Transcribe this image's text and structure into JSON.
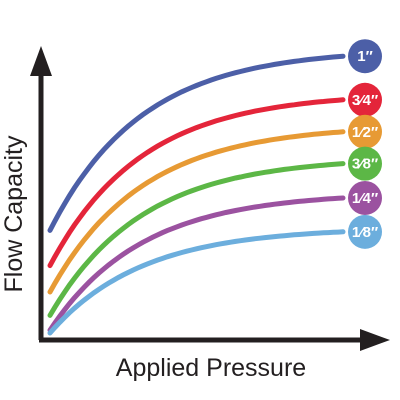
{
  "chart_data": {
    "type": "line",
    "title": "",
    "xlabel": "Applied Pressure",
    "ylabel": "Flow Capacity",
    "x_ticks_shown": false,
    "y_ticks_shown": false,
    "grid": false,
    "legend_placement": "right-end-labels",
    "series": [
      {
        "name": "1″",
        "color": "#4c5fa7",
        "start": 0.35,
        "plateau": 0.97,
        "rate": 3.2
      },
      {
        "name": "3⁄4″",
        "color": "#e4253a",
        "start": 0.23,
        "plateau": 0.82,
        "rate": 3.2
      },
      {
        "name": "1⁄2″",
        "color": "#e79a34",
        "start": 0.14,
        "plateau": 0.71,
        "rate": 3.2
      },
      {
        "name": "3⁄8″",
        "color": "#5cb746",
        "start": 0.06,
        "plateau": 0.6,
        "rate": 3.2
      },
      {
        "name": "1⁄4″",
        "color": "#9b52a0",
        "start": 0.01,
        "plateau": 0.48,
        "rate": 3.2
      },
      {
        "name": "1⁄8″",
        "color": "#6caedd",
        "start": 0.0,
        "plateau": 0.36,
        "rate": 3.2
      }
    ]
  }
}
